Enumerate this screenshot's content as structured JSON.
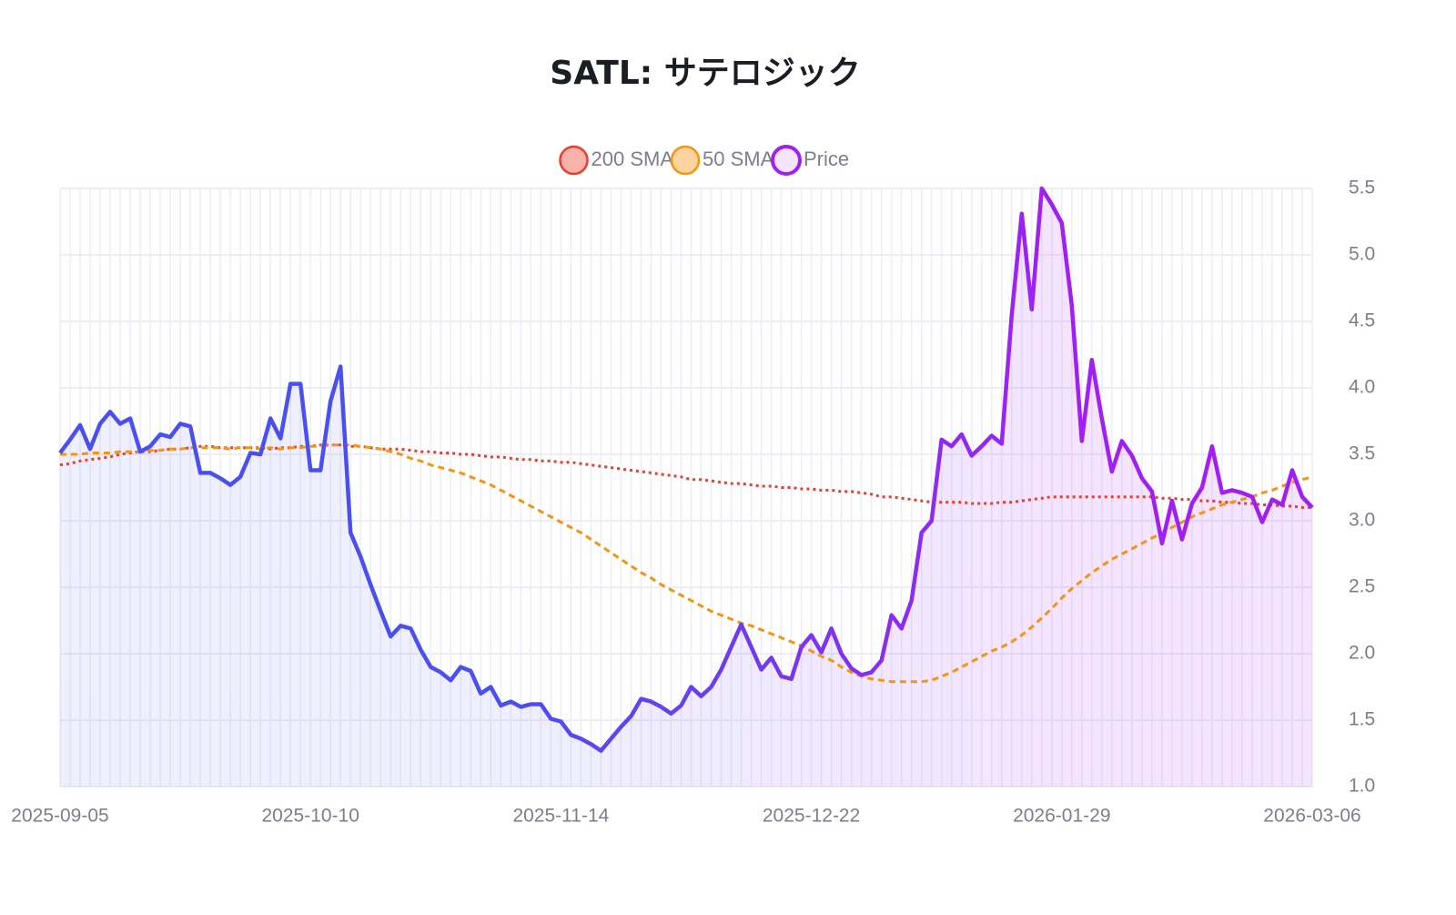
{
  "chart_data": {
    "type": "line",
    "title": "SATL: サテロジック",
    "categories": [
      "2025-09-05",
      null,
      null,
      null,
      null,
      null,
      null,
      null,
      null,
      null,
      null,
      null,
      null,
      null,
      null,
      null,
      null,
      null,
      null,
      null,
      null,
      null,
      null,
      null,
      null,
      "2025-10-10",
      null,
      null,
      null,
      null,
      null,
      null,
      null,
      null,
      null,
      null,
      null,
      null,
      null,
      null,
      null,
      null,
      null,
      null,
      null,
      null,
      null,
      null,
      null,
      null,
      "2025-11-14",
      null,
      null,
      null,
      null,
      null,
      null,
      null,
      null,
      null,
      null,
      null,
      null,
      null,
      null,
      null,
      null,
      null,
      null,
      null,
      null,
      null,
      null,
      null,
      null,
      "2025-12-22",
      null,
      null,
      null,
      null,
      null,
      null,
      null,
      null,
      null,
      null,
      null,
      null,
      null,
      null,
      null,
      null,
      null,
      null,
      null,
      null,
      null,
      null,
      null,
      null,
      "2026-01-29",
      null,
      null,
      null,
      null,
      null,
      null,
      null,
      null,
      null,
      null,
      null,
      null,
      null,
      null,
      null,
      null,
      null,
      null,
      null,
      null,
      null,
      null,
      null,
      null,
      "2026-03-06"
    ],
    "series": [
      {
        "name": "200 SMA",
        "color": "#ef3b2c",
        "dash": "dot",
        "values": [
          3.42,
          3.43,
          3.45,
          3.46,
          3.47,
          3.48,
          3.5,
          3.51,
          3.52,
          3.52,
          3.53,
          3.54,
          3.54,
          3.55,
          3.56,
          3.56,
          3.55,
          3.55,
          3.55,
          3.55,
          3.55,
          3.54,
          3.55,
          3.55,
          3.56,
          3.56,
          3.57,
          3.57,
          3.57,
          3.56,
          3.56,
          3.55,
          3.54,
          3.54,
          3.54,
          3.53,
          3.52,
          3.52,
          3.51,
          3.51,
          3.5,
          3.5,
          3.49,
          3.48,
          3.48,
          3.47,
          3.46,
          3.46,
          3.45,
          3.45,
          3.44,
          3.44,
          3.43,
          3.42,
          3.41,
          3.4,
          3.39,
          3.38,
          3.37,
          3.36,
          3.35,
          3.34,
          3.33,
          3.31,
          3.31,
          3.3,
          3.29,
          3.28,
          3.28,
          3.27,
          3.26,
          3.26,
          3.25,
          3.25,
          3.24,
          3.24,
          3.23,
          3.23,
          3.22,
          3.22,
          3.21,
          3.2,
          3.18,
          3.18,
          3.17,
          3.16,
          3.15,
          3.14,
          3.14,
          3.14,
          3.14,
          3.13,
          3.13,
          3.13,
          3.14,
          3.14,
          3.15,
          3.16,
          3.17,
          3.18,
          3.18,
          3.18,
          3.18,
          3.18,
          3.18,
          3.18,
          3.18,
          3.18,
          3.18,
          3.18,
          3.17,
          3.17,
          3.16,
          3.16,
          3.15,
          3.15,
          3.14,
          3.14,
          3.13,
          3.13,
          3.12,
          3.12,
          3.11,
          3.11,
          3.1,
          3.1
        ]
      },
      {
        "name": "50 SMA",
        "color": "#f7940d",
        "dash": "dash",
        "values": [
          3.5,
          3.5,
          3.5,
          3.51,
          3.51,
          3.51,
          3.52,
          3.52,
          3.52,
          3.53,
          3.53,
          3.54,
          3.54,
          3.55,
          3.55,
          3.55,
          3.55,
          3.54,
          3.55,
          3.55,
          3.54,
          3.55,
          3.54,
          3.55,
          3.55,
          3.56,
          3.56,
          3.57,
          3.57,
          3.57,
          3.56,
          3.55,
          3.54,
          3.52,
          3.5,
          3.47,
          3.45,
          3.42,
          3.4,
          3.38,
          3.36,
          3.33,
          3.3,
          3.27,
          3.23,
          3.19,
          3.15,
          3.11,
          3.07,
          3.03,
          2.99,
          2.95,
          2.91,
          2.86,
          2.81,
          2.76,
          2.71,
          2.66,
          2.61,
          2.57,
          2.52,
          2.48,
          2.44,
          2.4,
          2.36,
          2.32,
          2.29,
          2.26,
          2.23,
          2.21,
          2.18,
          2.15,
          2.12,
          2.09,
          2.06,
          2.02,
          1.98,
          1.95,
          1.9,
          1.86,
          1.83,
          1.81,
          1.8,
          1.79,
          1.79,
          1.79,
          1.79,
          1.8,
          1.83,
          1.86,
          1.9,
          1.94,
          1.98,
          2.02,
          2.05,
          2.09,
          2.14,
          2.2,
          2.27,
          2.34,
          2.42,
          2.49,
          2.55,
          2.61,
          2.66,
          2.71,
          2.75,
          2.79,
          2.83,
          2.87,
          2.91,
          2.95,
          2.99,
          3.03,
          3.06,
          3.09,
          3.12,
          3.14,
          3.16,
          3.18,
          3.21,
          3.23,
          3.26,
          3.29,
          3.31,
          3.33
        ]
      },
      {
        "name": "Price",
        "color": "#a21ff3",
        "gradient": [
          "#4a4ff1",
          "#a21ff3"
        ],
        "area": true,
        "values": [
          3.51,
          3.61,
          3.72,
          3.54,
          3.73,
          3.82,
          3.73,
          3.77,
          3.52,
          3.56,
          3.65,
          3.63,
          3.73,
          3.71,
          3.36,
          3.36,
          3.32,
          3.27,
          3.33,
          3.51,
          3.5,
          3.77,
          3.62,
          4.03,
          4.03,
          3.38,
          3.38,
          3.9,
          4.16,
          2.91,
          2.73,
          2.52,
          2.32,
          2.13,
          2.21,
          2.19,
          2.03,
          1.9,
          1.86,
          1.8,
          1.9,
          1.87,
          1.7,
          1.75,
          1.61,
          1.64,
          1.6,
          1.62,
          1.62,
          1.51,
          1.49,
          1.39,
          1.36,
          1.32,
          1.27,
          1.36,
          1.45,
          1.53,
          1.66,
          1.64,
          1.6,
          1.55,
          1.61,
          1.75,
          1.68,
          1.75,
          1.88,
          2.05,
          2.22,
          2.05,
          1.88,
          1.97,
          1.83,
          1.81,
          2.05,
          2.14,
          2.01,
          2.19,
          2.0,
          1.89,
          1.84,
          1.86,
          1.95,
          2.29,
          2.19,
          2.4,
          2.91,
          3.0,
          3.61,
          3.56,
          3.65,
          3.49,
          3.56,
          3.64,
          3.58,
          4.55,
          5.31,
          4.59,
          5.5,
          5.38,
          5.24,
          4.62,
          3.6,
          4.21,
          3.77,
          3.37,
          3.6,
          3.49,
          3.32,
          3.22,
          2.83,
          3.15,
          2.86,
          3.13,
          3.25,
          3.56,
          3.21,
          3.23,
          3.21,
          3.18,
          2.99,
          3.16,
          3.12,
          3.38,
          3.18,
          3.1
        ]
      }
    ],
    "ylim": [
      1,
      5.5
    ],
    "yticks": [
      {
        "value": 1,
        "label": "1.0"
      },
      1.5,
      {
        "value": 2,
        "label": "2.0"
      },
      2.5,
      {
        "value": 3,
        "label": "3.0"
      },
      3.5,
      {
        "value": 4,
        "label": "4.0"
      },
      4.5,
      {
        "value": 5,
        "label": "5.0"
      },
      5.5
    ],
    "y_axis_side": "right",
    "grid": true,
    "legend": "top"
  }
}
